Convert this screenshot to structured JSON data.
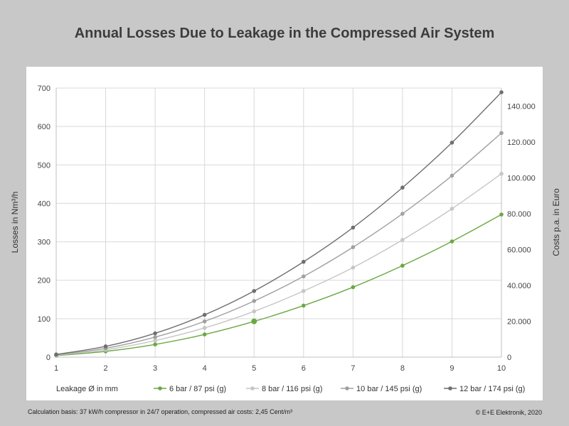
{
  "chart_data": {
    "type": "line",
    "title": "Annual Losses Due to Leakage in the Compressed Air System",
    "xlabel": "Leakage Ø in mm",
    "ylabel": "Losses in Nm³/h",
    "y2label": "Costs p.a. in Euro",
    "x": [
      1,
      2,
      3,
      4,
      5,
      6,
      7,
      8,
      9,
      10
    ],
    "xlim": [
      1,
      10
    ],
    "ylim": [
      0,
      700
    ],
    "y2lim": [
      0,
      150000
    ],
    "yticks": [
      0,
      100,
      200,
      300,
      400,
      500,
      600,
      700
    ],
    "y2ticks": [
      0,
      20000,
      40000,
      60000,
      80000,
      100000,
      120000,
      140000
    ],
    "y2ticklabels": [
      "0",
      "20.000",
      "40.000",
      "60.000",
      "80.000",
      "100.000",
      "120.000",
      "140.000"
    ],
    "grid": true,
    "legend_position": "bottom",
    "series": [
      {
        "name": "6 bar / 87 psi (g)",
        "color": "#6aa842",
        "values": [
          4,
          15,
          33,
          59,
          93,
          134,
          182,
          238,
          301,
          371
        ]
      },
      {
        "name": "8 bar / 116 psi (g)",
        "color": "#c6c6c6",
        "values": [
          5,
          19,
          43,
          76,
          119,
          172,
          233,
          305,
          386,
          477
        ]
      },
      {
        "name": "10 bar / 145 psi (g)",
        "color": "#a0a0a0",
        "values": [
          6,
          23,
          52,
          93,
          146,
          210,
          286,
          373,
          472,
          583
        ]
      },
      {
        "name": "12 bar / 174 psi (g)",
        "color": "#6f6f6f",
        "values": [
          7,
          28,
          62,
          110,
          172,
          248,
          337,
          441,
          558,
          689
        ]
      }
    ],
    "highlight": {
      "series": 0,
      "x": 5
    }
  },
  "footnote": "Calculation basis: 37 kW/h compressor in 24/7 operation, compressed air costs: 2,45 Cent/m³",
  "copyright": "© E+E Elektronik, 2020"
}
